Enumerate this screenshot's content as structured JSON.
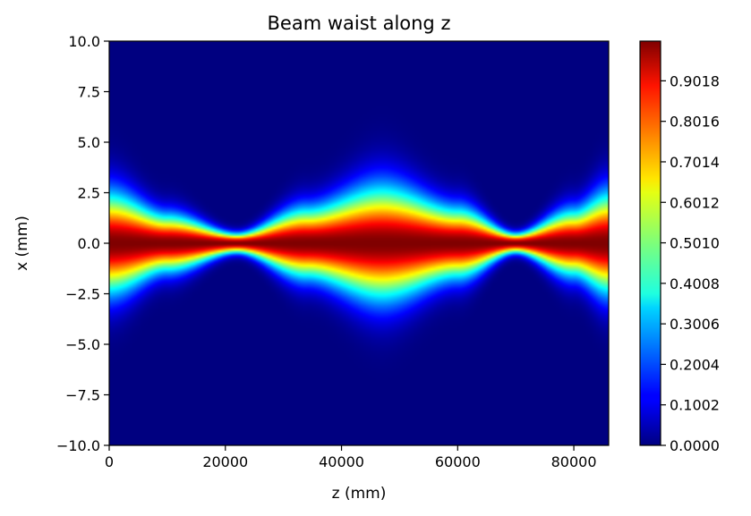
{
  "chart_data": {
    "type": "heatmap",
    "title": "Beam waist along z",
    "xlabel": "z (mm)",
    "ylabel": "x (mm)",
    "colormap": "jet",
    "xlim": [
      0,
      86000
    ],
    "ylim": [
      -10.0,
      10.0
    ],
    "x_ticks": [
      "0",
      "20000",
      "40000",
      "60000",
      "80000"
    ],
    "x_tick_values": [
      0,
      20000,
      40000,
      60000,
      80000
    ],
    "y_ticks": [
      "10.0",
      "7.5",
      "5.0",
      "2.5",
      "0.0",
      "−2.5",
      "−5.0",
      "−7.5",
      "−10.0"
    ],
    "y_tick_values": [
      10.0,
      7.5,
      5.0,
      2.5,
      0.0,
      -2.5,
      -5.0,
      -7.5,
      -10.0
    ],
    "colorbar": {
      "ticks": [
        "0.0000",
        "0.1002",
        "0.2004",
        "0.3006",
        "0.4008",
        "0.5010",
        "0.6012",
        "0.7014",
        "0.8016",
        "0.9018"
      ],
      "tick_values": [
        0.0,
        0.1002,
        0.2004,
        0.3006,
        0.4008,
        0.501,
        0.6012,
        0.7014,
        0.8016,
        0.9018
      ],
      "range": [
        0.0,
        1.0
      ]
    },
    "beam_waist_profile": {
      "z": [
        0,
        10000,
        22000,
        34000,
        47000,
        60000,
        70000,
        80000,
        86000
      ],
      "waist": [
        2.3,
        1.3,
        0.45,
        1.6,
        2.6,
        1.6,
        0.45,
        1.5,
        2.3
      ]
    }
  }
}
